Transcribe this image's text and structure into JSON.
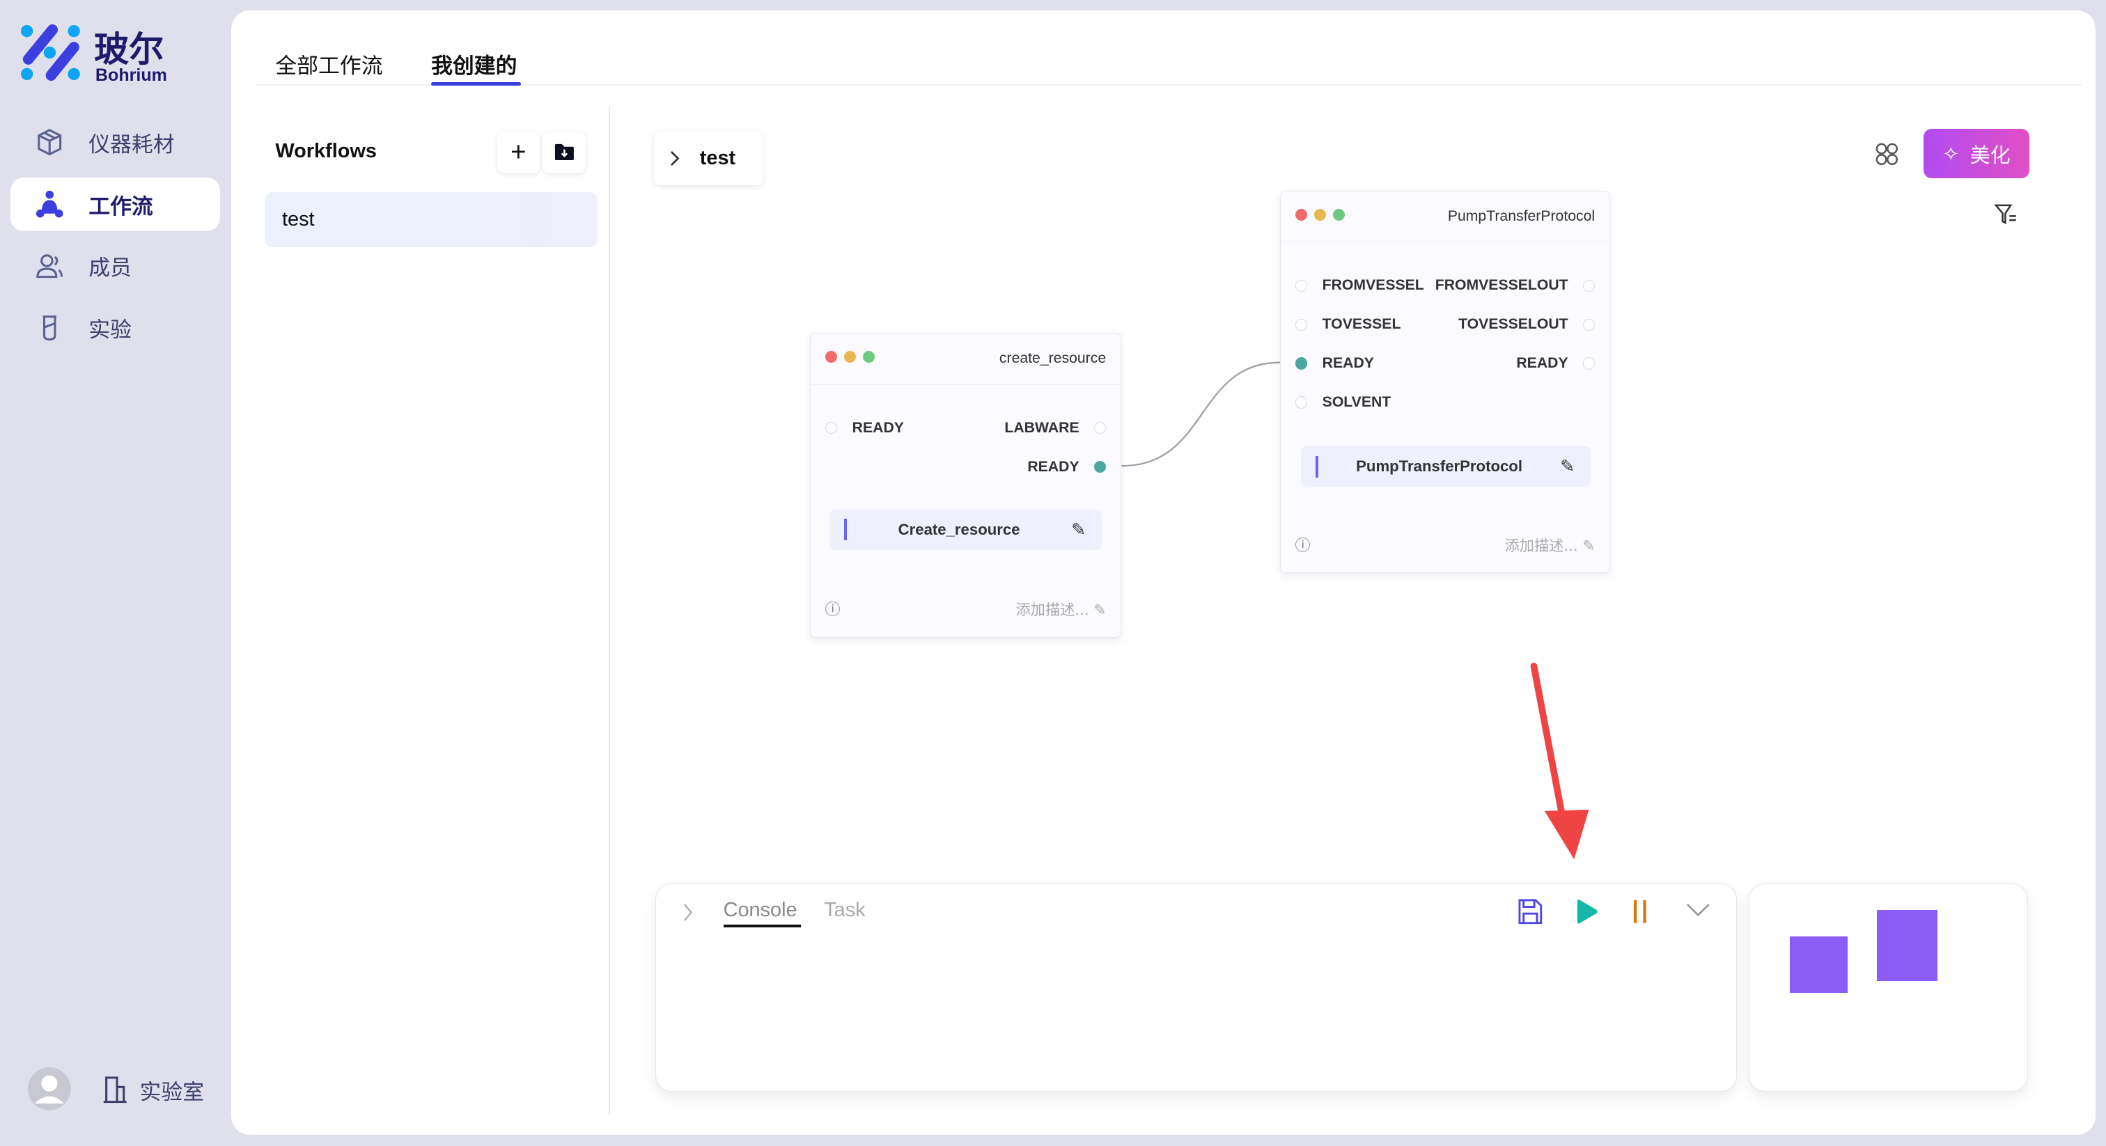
{
  "brand": {
    "name_cn": "玻尔",
    "name_en": "Bohrium"
  },
  "sidebar": {
    "items": [
      {
        "label": "仪器耗材",
        "icon": "box-icon"
      },
      {
        "label": "工作流",
        "icon": "workflow-icon",
        "active": true
      },
      {
        "label": "成员",
        "icon": "members-icon"
      },
      {
        "label": "实验",
        "icon": "flask-icon"
      }
    ],
    "footer": {
      "lab_label": "实验室"
    }
  },
  "tabs": [
    {
      "label": "全部工作流"
    },
    {
      "label": "我创建的",
      "active": true
    }
  ],
  "workflows": {
    "title": "Workflows",
    "items": [
      {
        "label": "test",
        "selected": true
      }
    ]
  },
  "canvas": {
    "breadcrumb": "test",
    "beautify_label": "美化",
    "nodes": [
      {
        "title": "create_resource",
        "inputs": [
          "READY"
        ],
        "outputs": [
          "LABWARE",
          "READY"
        ],
        "action": "Create_resource",
        "desc_placeholder": "添加描述..."
      },
      {
        "title": "PumpTransferProtocol",
        "inputs": [
          "FROMVESSEL",
          "TOVESSEL",
          "READY",
          "SOLVENT"
        ],
        "outputs": [
          "FROMVESSELOUT",
          "TOVESSELOUT",
          "READY"
        ],
        "action": "PumpTransferProtocol",
        "desc_placeholder": "添加描述..."
      }
    ],
    "edge": {
      "from": "create_resource.READY",
      "to": "PumpTransferProtocol.READY"
    }
  },
  "console": {
    "tabs": [
      {
        "label": "Console",
        "active": true
      },
      {
        "label": "Task"
      }
    ]
  },
  "colors": {
    "accent": "#3b3fe0",
    "play": "#14b8a6",
    "pause": "#d97706",
    "minimap": "#8b5cf6",
    "arrow": "#ef4444"
  }
}
